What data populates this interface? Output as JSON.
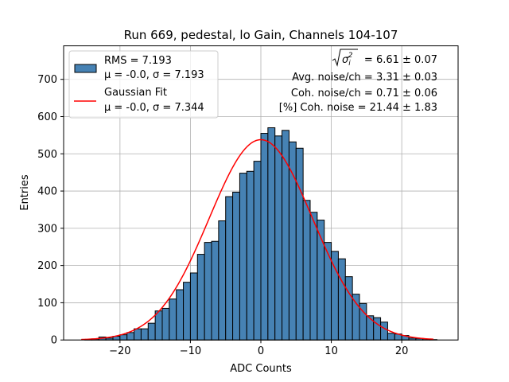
{
  "chart_data": {
    "type": "bar",
    "title": "Run 669, pedestal, lo Gain, Channels 104-107",
    "xlabel": "ADC Counts",
    "ylabel": "Entries",
    "xlim": [
      -28,
      28
    ],
    "ylim": [
      0,
      790
    ],
    "xticks": [
      -20,
      -10,
      0,
      10,
      20
    ],
    "xtick_labels": [
      "−20",
      "−10",
      "0",
      "10",
      "20"
    ],
    "yticks": [
      0,
      100,
      200,
      300,
      400,
      500,
      600,
      700
    ],
    "ytick_labels": [
      "0",
      "100",
      "200",
      "300",
      "400",
      "500",
      "600",
      "700"
    ],
    "grid": true,
    "legend_position": "top-left",
    "histogram": {
      "name": "RMS = 7.193",
      "subname": "μ = -0.0, σ = 7.193",
      "color": "#4682b4",
      "edge_color": "#000000",
      "bin_start": -25,
      "bin_width": 1,
      "values": [
        1,
        3,
        8,
        5,
        10,
        14,
        20,
        30,
        30,
        45,
        78,
        85,
        110,
        135,
        155,
        180,
        230,
        262,
        265,
        320,
        385,
        397,
        448,
        453,
        480,
        555,
        570,
        548,
        563,
        532,
        515,
        375,
        343,
        322,
        262,
        238,
        218,
        170,
        123,
        98,
        65,
        60,
        48,
        18,
        16,
        12,
        5,
        4,
        1,
        1
      ]
    },
    "fit": {
      "name": "Gaussian Fit",
      "subname": "μ = -0.0, σ = 7.344",
      "color": "#ff0000",
      "mu": 0.0,
      "sigma": 7.344,
      "amplitude": 538,
      "x_range": [
        -25.5,
        24.5
      ]
    },
    "annotations": [
      {
        "prefix": "",
        "suffix": " = 6.61 ± 0.07",
        "math": "sqrt-sigma-i-squared"
      },
      {
        "text": "Avg. noise/ch = 3.31 ± 0.03"
      },
      {
        "text": "Coh. noise/ch = 0.71 ± 0.06"
      },
      {
        "text": "[%] Coh. noise = 21.44 ± 1.83"
      }
    ]
  }
}
